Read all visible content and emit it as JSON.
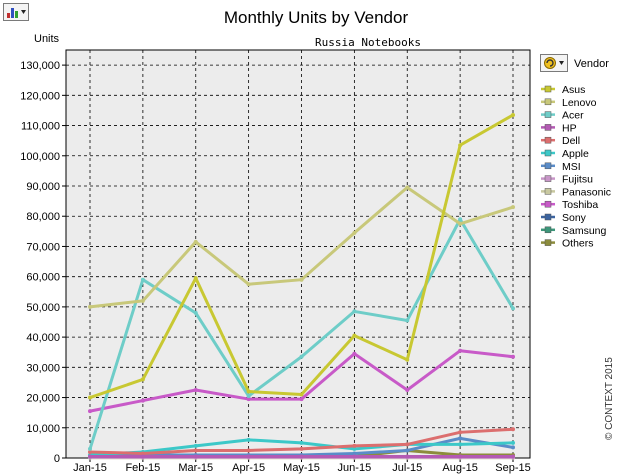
{
  "toolbar": {
    "chart_tool_icon": "bar-chart-icon"
  },
  "legend_title_icon": "rotate-icon",
  "copyright": "© CONTEXT 2015",
  "chart_data": {
    "type": "line",
    "title": "Monthly Units by Vendor",
    "subtitle": "Russia  Notebooks",
    "ylabel": "Units",
    "xlabel": "",
    "legend_title": "Vendor",
    "legend_position": "right",
    "grid": true,
    "ylim": [
      0,
      135000
    ],
    "yticks": [
      0,
      10000,
      20000,
      30000,
      40000,
      50000,
      60000,
      70000,
      80000,
      90000,
      100000,
      110000,
      120000,
      130000
    ],
    "ytick_labels": [
      "0",
      "10,000",
      "20,000",
      "30,000",
      "40,000",
      "50,000",
      "60,000",
      "70,000",
      "80,000",
      "90,000",
      "100,000",
      "110,000",
      "120,000",
      "130,000"
    ],
    "categories": [
      "Jan-15",
      "Feb-15",
      "Mar-15",
      "Apr-15",
      "May-15",
      "Jun-15",
      "Jul-15",
      "Aug-15",
      "Sep-15"
    ],
    "series": [
      {
        "name": "Asus",
        "color": "#c8c832",
        "values": [
          20000,
          26000,
          59500,
          22000,
          21000,
          40500,
          32500,
          103500,
          113500
        ]
      },
      {
        "name": "Lenovo",
        "color": "#c8c87a",
        "values": [
          50000,
          52000,
          71500,
          57500,
          59000,
          74500,
          89500,
          77500,
          83000
        ]
      },
      {
        "name": "Acer",
        "color": "#6ecdc8",
        "values": [
          3000,
          59000,
          48000,
          20500,
          33500,
          48500,
          45500,
          79000,
          49500
        ]
      },
      {
        "name": "HP",
        "color": "#b45ab4",
        "values": [
          500,
          500,
          500,
          500,
          500,
          500,
          500,
          500,
          500
        ]
      },
      {
        "name": "Dell",
        "color": "#dc6e6e",
        "values": [
          2000,
          1500,
          2500,
          2500,
          3000,
          4000,
          4500,
          8500,
          9500
        ]
      },
      {
        "name": "Apple",
        "color": "#3cc8c8",
        "values": [
          1000,
          2000,
          4000,
          6000,
          5000,
          3000,
          4500,
          4500,
          5000
        ]
      },
      {
        "name": "MSI",
        "color": "#5a8cc8",
        "values": [
          500,
          1000,
          1000,
          1000,
          1000,
          1500,
          2500,
          6500,
          3500
        ]
      },
      {
        "name": "Fujitsu",
        "color": "#c896c8",
        "values": [
          200,
          200,
          200,
          200,
          200,
          200,
          200,
          200,
          200
        ]
      },
      {
        "name": "Panasonic",
        "color": "#c8c8a0",
        "values": [
          100,
          100,
          100,
          100,
          100,
          100,
          100,
          100,
          100
        ]
      },
      {
        "name": "Toshiba",
        "color": "#c85ac8",
        "values": [
          15500,
          19000,
          22500,
          19500,
          19500,
          34500,
          22500,
          35500,
          33500
        ]
      },
      {
        "name": "Sony",
        "color": "#3c64a0",
        "values": [
          300,
          300,
          300,
          300,
          300,
          300,
          300,
          300,
          300
        ]
      },
      {
        "name": "Samsung",
        "color": "#3c967a",
        "values": [
          200,
          200,
          200,
          200,
          200,
          200,
          200,
          200,
          200
        ]
      },
      {
        "name": "Others",
        "color": "#8c8c3c",
        "values": [
          300,
          500,
          300,
          500,
          300,
          500,
          2500,
          1000,
          1000
        ]
      }
    ]
  }
}
